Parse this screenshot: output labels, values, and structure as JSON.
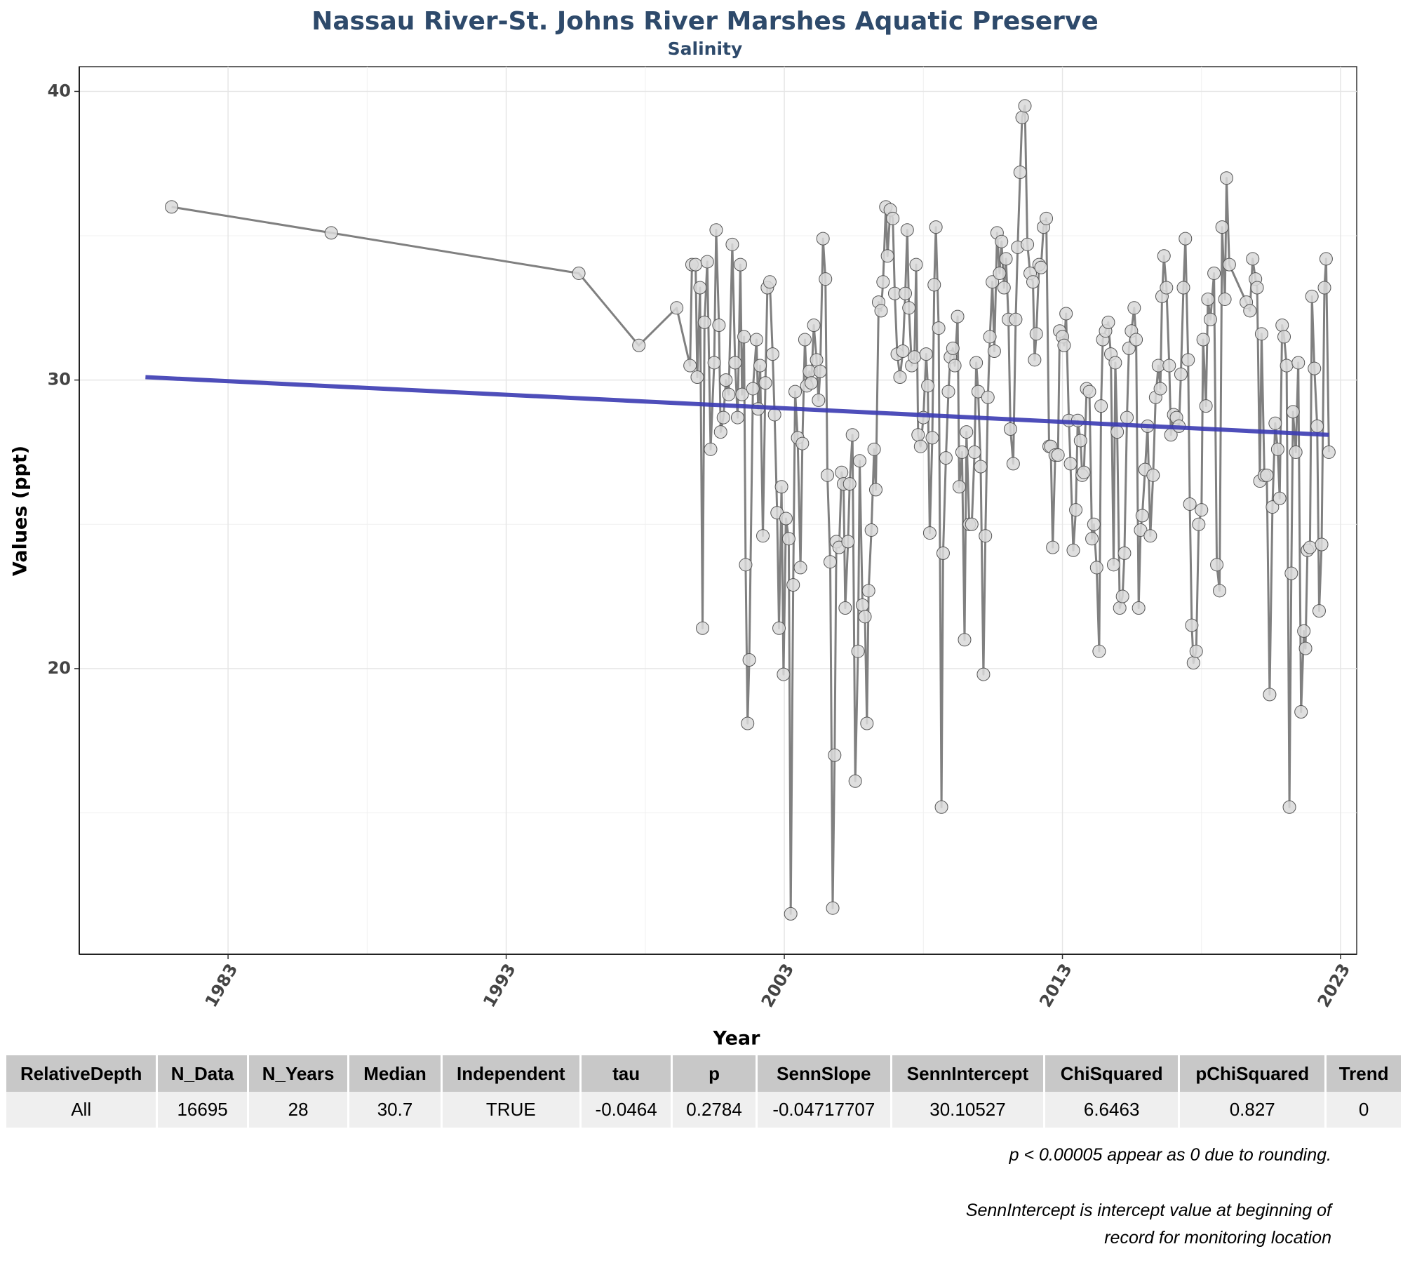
{
  "chart_data": {
    "type": "line",
    "title": "Nassau River-St. Johns River Marshes Aquatic Preserve",
    "subtitle": "Salinity",
    "x_label": "Year",
    "y_label": "Values (ppt)",
    "xlim": [
      1977.65,
      2023.58
    ],
    "ylim": [
      10.1,
      40.86
    ],
    "xticks": [
      1983,
      1993,
      2003,
      2013,
      2023
    ],
    "yticks": [
      20,
      30,
      40
    ],
    "xminor": [
      1988,
      1998,
      2008,
      2018
    ],
    "yminor": [
      15,
      25,
      35
    ],
    "grid": true,
    "color": "#808080",
    "marker_color": "#d9d9d9",
    "x": [
      1980.97,
      1986.71,
      1995.61,
      1997.77,
      1999.13,
      1999.61,
      1999.68,
      1999.81,
      1999.87,
      1999.97,
      2000.06,
      2000.13,
      2000.23,
      2000.35,
      2000.48,
      2000.55,
      2000.65,
      2000.71,
      2000.81,
      2000.9,
      2001.0,
      2001.13,
      2001.23,
      2001.32,
      2001.42,
      2001.48,
      2001.55,
      2001.61,
      2001.68,
      2001.74,
      2001.87,
      2002.0,
      2002.06,
      2002.13,
      2002.23,
      2002.32,
      2002.39,
      2002.48,
      2002.58,
      2002.65,
      2002.74,
      2002.81,
      2002.9,
      2002.97,
      2003.06,
      2003.16,
      2003.23,
      2003.32,
      2003.39,
      2003.48,
      2003.58,
      2003.65,
      2003.74,
      2003.81,
      2003.9,
      2003.97,
      2004.06,
      2004.16,
      2004.23,
      2004.29,
      2004.39,
      2004.48,
      2004.55,
      2004.65,
      2004.74,
      2004.81,
      2004.87,
      2004.97,
      2005.06,
      2005.13,
      2005.19,
      2005.29,
      2005.35,
      2005.45,
      2005.55,
      2005.65,
      2005.71,
      2005.81,
      2005.9,
      2005.97,
      2006.03,
      2006.13,
      2006.23,
      2006.29,
      2006.39,
      2006.48,
      2006.55,
      2006.65,
      2006.71,
      2006.81,
      2006.9,
      2006.97,
      2007.06,
      2007.16,
      2007.26,
      2007.35,
      2007.42,
      2007.48,
      2007.58,
      2007.68,
      2007.74,
      2007.81,
      2007.9,
      2008.0,
      2008.1,
      2008.16,
      2008.23,
      2008.32,
      2008.39,
      2008.45,
      2008.55,
      2008.65,
      2008.71,
      2008.81,
      2008.9,
      2008.97,
      2009.06,
      2009.13,
      2009.23,
      2009.29,
      2009.39,
      2009.48,
      2009.55,
      2009.65,
      2009.74,
      2009.84,
      2009.9,
      2009.97,
      2010.06,
      2010.16,
      2010.23,
      2010.32,
      2010.39,
      2010.48,
      2010.55,
      2010.65,
      2010.74,
      2010.81,
      2010.9,
      2010.97,
      2011.06,
      2011.13,
      2011.23,
      2011.32,
      2011.39,
      2011.48,
      2011.55,
      2011.65,
      2011.74,
      2011.84,
      2011.94,
      2012.0,
      2012.06,
      2012.16,
      2012.23,
      2012.32,
      2012.42,
      2012.52,
      2012.58,
      2012.65,
      2012.74,
      2012.84,
      2012.9,
      2013.0,
      2013.06,
      2013.13,
      2013.23,
      2013.29,
      2013.39,
      2013.48,
      2013.55,
      2013.65,
      2013.71,
      2013.77,
      2013.87,
      2013.97,
      2014.06,
      2014.13,
      2014.23,
      2014.32,
      2014.39,
      2014.45,
      2014.55,
      2014.65,
      2014.74,
      2014.84,
      2014.9,
      2014.97,
      2015.06,
      2015.16,
      2015.23,
      2015.32,
      2015.39,
      2015.48,
      2015.58,
      2015.65,
      2015.74,
      2015.81,
      2015.87,
      2015.97,
      2016.06,
      2016.16,
      2016.26,
      2016.35,
      2016.45,
      2016.52,
      2016.58,
      2016.65,
      2016.74,
      2016.84,
      2016.9,
      2017.0,
      2017.1,
      2017.19,
      2017.26,
      2017.35,
      2017.42,
      2017.52,
      2017.58,
      2017.65,
      2017.71,
      2017.81,
      2017.9,
      2018.0,
      2018.06,
      2018.16,
      2018.23,
      2018.32,
      2018.45,
      2018.55,
      2018.65,
      2018.74,
      2018.84,
      2018.9,
      2019.0,
      2019.61,
      2019.74,
      2019.84,
      2019.94,
      2020.0,
      2020.1,
      2020.16,
      2020.26,
      2020.35,
      2020.45,
      2020.55,
      2020.65,
      2020.74,
      2020.81,
      2020.9,
      2020.97,
      2021.06,
      2021.16,
      2021.23,
      2021.29,
      2021.39,
      2021.48,
      2021.58,
      2021.68,
      2021.74,
      2021.81,
      2021.9,
      2021.97,
      2022.06,
      2022.16,
      2022.23,
      2022.32,
      2022.42,
      2022.48,
      2022.58
    ],
    "values": [
      36.0,
      35.1,
      33.7,
      31.2,
      32.5,
      30.5,
      34.0,
      34.0,
      30.1,
      33.2,
      21.4,
      32.0,
      34.1,
      27.6,
      30.6,
      35.2,
      31.9,
      28.2,
      28.7,
      30.0,
      29.5,
      34.7,
      30.6,
      28.7,
      34.0,
      29.5,
      31.5,
      23.6,
      18.1,
      20.3,
      29.7,
      31.4,
      29.0,
      30.5,
      24.6,
      29.9,
      33.2,
      33.4,
      30.9,
      28.8,
      25.4,
      21.4,
      26.3,
      19.8,
      25.2,
      24.5,
      11.5,
      22.9,
      29.6,
      28.0,
      23.5,
      27.8,
      31.4,
      29.8,
      30.3,
      29.9,
      31.9,
      30.7,
      29.3,
      30.3,
      34.9,
      33.5,
      26.7,
      23.7,
      11.7,
      17.0,
      24.4,
      24.2,
      26.8,
      26.4,
      22.1,
      24.4,
      26.4,
      28.1,
      16.1,
      20.6,
      27.2,
      22.2,
      21.8,
      18.1,
      22.7,
      24.8,
      27.6,
      26.2,
      32.7,
      32.4,
      33.4,
      36.0,
      34.3,
      35.9,
      35.6,
      33.0,
      30.9,
      30.1,
      31.0,
      33.0,
      35.2,
      32.5,
      30.5,
      30.8,
      34.0,
      28.1,
      27.7,
      28.7,
      30.9,
      29.8,
      24.7,
      28.0,
      33.3,
      35.3,
      31.8,
      15.2,
      24.0,
      27.3,
      29.6,
      30.8,
      31.1,
      30.5,
      32.2,
      26.3,
      27.5,
      21.0,
      28.2,
      25.0,
      25.0,
      27.5,
      30.6,
      29.6,
      27.0,
      19.8,
      24.6,
      29.4,
      31.5,
      33.4,
      31.0,
      35.1,
      33.7,
      34.8,
      33.2,
      34.2,
      32.1,
      28.3,
      27.1,
      32.1,
      34.6,
      37.2,
      39.1,
      39.5,
      34.7,
      33.7,
      33.4,
      30.7,
      31.6,
      34.0,
      33.9,
      35.3,
      35.6,
      27.7,
      27.7,
      24.2,
      27.4,
      27.4,
      31.7,
      31.5,
      31.2,
      32.3,
      28.6,
      27.1,
      24.1,
      25.5,
      28.6,
      27.9,
      26.7,
      26.8,
      29.7,
      29.6,
      24.5,
      25.0,
      23.5,
      20.6,
      29.1,
      31.4,
      31.7,
      32.0,
      30.9,
      23.6,
      30.6,
      28.2,
      22.1,
      22.5,
      24.0,
      28.7,
      31.1,
      31.7,
      32.5,
      31.4,
      22.1,
      24.8,
      25.3,
      26.9,
      28.4,
      24.6,
      26.7,
      29.4,
      30.5,
      29.7,
      32.9,
      34.3,
      33.2,
      30.5,
      28.1,
      28.8,
      28.7,
      28.4,
      30.2,
      33.2,
      34.9,
      30.7,
      25.7,
      21.5,
      20.2,
      20.6,
      25.0,
      25.5,
      31.4,
      29.1,
      32.8,
      32.1,
      33.7,
      23.6,
      22.7,
      35.3,
      32.8,
      37.0,
      34.0,
      32.7,
      32.4,
      34.2,
      33.5,
      33.2,
      26.5,
      31.6,
      26.7,
      26.7,
      19.1,
      25.6,
      28.5,
      27.6,
      25.9,
      31.9,
      31.5,
      30.5,
      15.2,
      23.3,
      28.9,
      27.5,
      30.6,
      18.5,
      21.3,
      20.7,
      24.1,
      24.2,
      32.9,
      30.4,
      28.4,
      22.0,
      24.3,
      33.2,
      34.2,
      27.5
    ],
    "trend": {
      "x": [
        1980.03,
        2022.58
      ],
      "values": [
        30.1,
        28.1
      ],
      "color": "#3b3bb3"
    }
  },
  "table": {
    "header": [
      "RelativeDepth",
      "N_Data",
      "N_Years",
      "Median",
      "Independent",
      "tau",
      "p",
      "SennSlope",
      "SennIntercept",
      "ChiSquared",
      "pChiSquared",
      "Trend"
    ],
    "rows": [
      [
        "All",
        "16695",
        "28",
        "30.7",
        "TRUE",
        "-0.0464",
        "0.2784",
        "-0.04717707",
        "30.10527",
        "6.6463",
        "0.827",
        "0"
      ]
    ]
  },
  "notes": [
    "p < 0.00005 appear as 0 due to rounding.",
    "SennIntercept is intercept value at beginning of",
    "record for monitoring location"
  ]
}
